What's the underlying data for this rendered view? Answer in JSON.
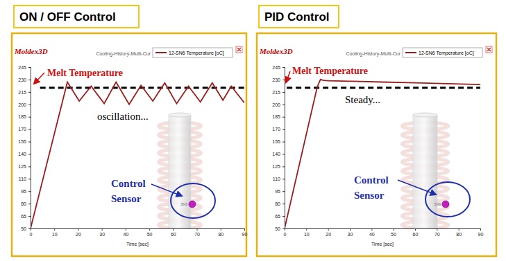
{
  "chart_data": [
    {
      "type": "line",
      "title": "ON / OFF Control",
      "brand": "Moldex3D",
      "subtitle": "Cooling-History-Multi-Cur",
      "x_label": "Time [sec]",
      "series": [
        {
          "name": "12-SN6 Temperature [oC]",
          "color": "#9b1c1c",
          "x": [
            0,
            15.5,
            20.5,
            25.5,
            31,
            36,
            41.5,
            46.5,
            51.5,
            56.5,
            61.5,
            66.5,
            71.5,
            76.5,
            81,
            84.5,
            90
          ],
          "values": [
            50,
            227,
            204,
            222,
            201,
            227,
            200,
            223,
            204,
            226,
            201,
            222,
            203,
            226,
            205,
            222,
            202
          ]
        }
      ],
      "reference_line": {
        "label": "Melt Temperature",
        "value": 220,
        "x": [
          4,
          90
        ],
        "color": "#000000",
        "line_style": "dashed"
      },
      "annotations": [
        "oscillation..."
      ],
      "sensor": {
        "label": "Control Sensor",
        "name": "SN6"
      },
      "xlim": [
        0,
        90
      ],
      "xticks": [
        0,
        10,
        20,
        30,
        40,
        50,
        60,
        70,
        80,
        90
      ],
      "ylim": [
        50,
        245
      ],
      "yticks": [
        50,
        65,
        80,
        95,
        110,
        125,
        140,
        155,
        170,
        185,
        200,
        215,
        230,
        245
      ],
      "legend": "top-right",
      "grid": false
    },
    {
      "type": "line",
      "title": "PID Control",
      "brand": "Moldex3D",
      "subtitle": "Cooling-History-Multi-Cur",
      "x_label": "Time [sec]",
      "series": [
        {
          "name": "12-SN6 Temperature [oC]",
          "color": "#9b1c1c",
          "x": [
            0,
            15,
            16.5,
            18,
            20,
            30,
            45,
            60,
            75,
            90
          ],
          "values": [
            50,
            221,
            230,
            229,
            228.5,
            228,
            227,
            226,
            225,
            224
          ]
        }
      ],
      "reference_line": {
        "label": "Melt Temperature",
        "value": 220,
        "x": [
          1,
          90
        ],
        "color": "#000000",
        "line_style": "dashed"
      },
      "annotations": [
        "Steady..."
      ],
      "sensor": {
        "label": "Control Sensor",
        "name": "SN6"
      },
      "xlim": [
        0,
        90
      ],
      "xticks": [
        0,
        10,
        20,
        30,
        40,
        50,
        60,
        70,
        80,
        90
      ],
      "ylim": [
        50,
        245
      ],
      "yticks": [
        50,
        65,
        80,
        95,
        110,
        125,
        140,
        155,
        170,
        185,
        200,
        215,
        230,
        245
      ],
      "legend": "top-right",
      "grid": false
    }
  ]
}
